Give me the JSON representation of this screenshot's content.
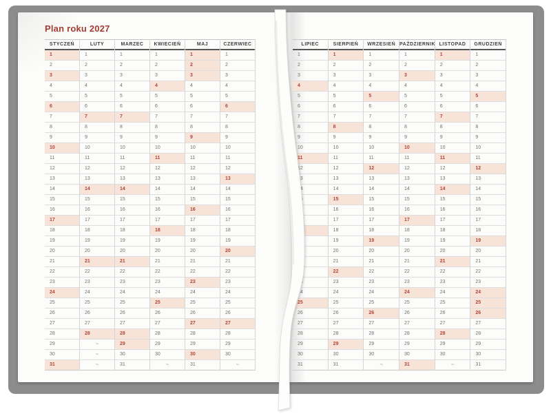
{
  "title": "Plan roku 2027",
  "empty_marker": "~",
  "max_rows": 31,
  "colors": {
    "accent_red": "#a33d33",
    "highlight_bg": "#f7e3d7",
    "highlight_text": "#b0463a",
    "cover_gray": "#8c8c8c",
    "page_white": "#fcfcfb",
    "day_text": "#707070",
    "header_text": "#3e3e3e"
  },
  "pages": [
    {
      "side": "left",
      "months": [
        {
          "name": "STYCZEŃ",
          "days": 31,
          "highlighted": [
            1,
            3,
            6,
            10,
            17,
            24,
            31
          ]
        },
        {
          "name": "LUTY",
          "days": 28,
          "highlighted": [
            7,
            14,
            21,
            28
          ]
        },
        {
          "name": "MARZEC",
          "days": 31,
          "highlighted": [
            7,
            14,
            21,
            28,
            29
          ]
        },
        {
          "name": "KWIECIEŃ",
          "days": 30,
          "highlighted": [
            4,
            11,
            18,
            25
          ]
        },
        {
          "name": "MAJ",
          "days": 31,
          "highlighted": [
            1,
            2,
            3,
            9,
            16,
            23,
            27,
            30
          ]
        },
        {
          "name": "CZERWIEC",
          "days": 30,
          "highlighted": [
            6,
            13,
            20,
            27
          ]
        }
      ]
    },
    {
      "side": "right",
      "months": [
        {
          "name": "LIPIEC",
          "days": 31,
          "highlighted": [
            4,
            11,
            18,
            25
          ]
        },
        {
          "name": "SIERPIEŃ",
          "days": 31,
          "highlighted": [
            1,
            8,
            15,
            22,
            29
          ]
        },
        {
          "name": "WRZESIEŃ",
          "days": 30,
          "highlighted": [
            5,
            12,
            19,
            26
          ]
        },
        {
          "name": "PAŹDZIERNIK",
          "days": 31,
          "highlighted": [
            3,
            10,
            17,
            24,
            31
          ]
        },
        {
          "name": "LISTOPAD",
          "days": 30,
          "highlighted": [
            1,
            7,
            11,
            14,
            21,
            28
          ]
        },
        {
          "name": "GRUDZIEŃ",
          "days": 31,
          "highlighted": [
            5,
            12,
            19,
            24,
            25,
            26
          ]
        }
      ]
    }
  ]
}
